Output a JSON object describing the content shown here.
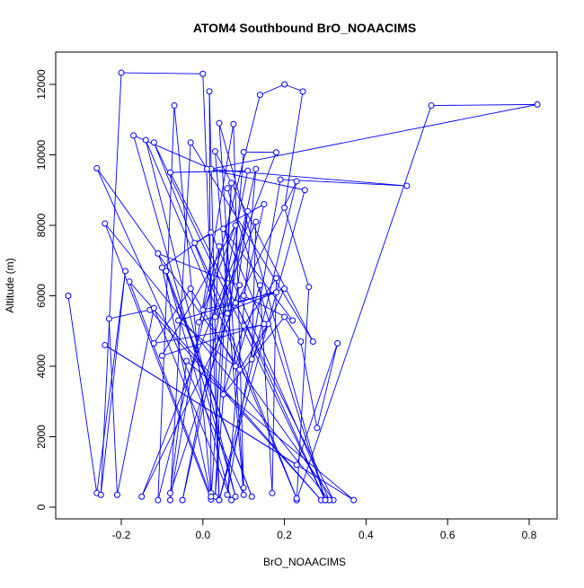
{
  "chart_data": {
    "type": "line",
    "title": "ATOM4 Southbound BrO_NOAACIMS",
    "xlabel": "BrO_NOAACIMS",
    "ylabel": "Altitude (m)",
    "xlim": [
      -0.35,
      0.87
    ],
    "ylim": [
      -300,
      12800
    ],
    "xticks": [
      -0.2,
      0.0,
      0.2,
      0.4,
      0.6,
      0.8
    ],
    "xtick_labels": [
      "-0.2",
      "0.0",
      "0.2",
      "0.4",
      "0.6",
      "0.8"
    ],
    "yticks": [
      0,
      2000,
      4000,
      6000,
      8000,
      10000,
      12000
    ],
    "ytick_labels": [
      "0",
      "2000",
      "4000",
      "6000",
      "8000",
      "10000",
      "12000"
    ],
    "grid": false,
    "series": [
      {
        "name": "BrO_NOAACIMS",
        "color": "#0000ff",
        "marker": "open-circle",
        "points": [
          [
            -0.33,
            6000
          ],
          [
            -0.26,
            400
          ],
          [
            -0.19,
            6700
          ],
          [
            -0.25,
            350
          ],
          [
            -0.2,
            12330
          ],
          [
            0.0,
            12300
          ],
          [
            0.04,
            200
          ],
          [
            0.016,
            11800
          ],
          [
            0.02,
            400
          ],
          [
            -0.07,
            11400
          ],
          [
            -0.11,
            200
          ],
          [
            0.14,
            11700
          ],
          [
            0.2,
            12000
          ],
          [
            0.245,
            11800
          ],
          [
            0.2,
            8500
          ],
          [
            0.26,
            6250
          ],
          [
            0.23,
            200
          ],
          [
            0.56,
            11400
          ],
          [
            0.82,
            11430
          ],
          [
            0.02,
            9600
          ],
          [
            -0.17,
            10550
          ],
          [
            0.08,
            300
          ],
          [
            -0.14,
            10420
          ],
          [
            0.23,
            250
          ],
          [
            -0.12,
            10350
          ],
          [
            0.3,
            200
          ],
          [
            0.04,
            10900
          ],
          [
            0.1,
            550
          ],
          [
            0.075,
            10870
          ],
          [
            -0.08,
            200
          ],
          [
            -0.03,
            10350
          ],
          [
            0.27,
            4700
          ],
          [
            0.03,
            10100
          ],
          [
            0.1,
            350
          ],
          [
            -0.26,
            9620
          ],
          [
            0.32,
            200
          ],
          [
            -0.08,
            9500
          ],
          [
            0.11,
            9550
          ],
          [
            -0.05,
            200
          ],
          [
            0.13,
            9600
          ],
          [
            0.06,
            350
          ],
          [
            0.19,
            9300
          ],
          [
            0.5,
            9120
          ],
          [
            0.01,
            9600
          ],
          [
            0.25,
            9000
          ],
          [
            0.04,
            200
          ],
          [
            0.23,
            9250
          ],
          [
            -0.15,
            300
          ],
          [
            0.18,
            10070
          ],
          [
            0.1,
            10080
          ],
          [
            0.03,
            300
          ],
          [
            0.07,
            9200
          ],
          [
            0.02,
            220
          ],
          [
            -0.24,
            8050
          ],
          [
            0.31,
            200
          ],
          [
            0.02,
            7800
          ],
          [
            -0.1,
            6800
          ],
          [
            0.02,
            300
          ],
          [
            -0.18,
            6400
          ],
          [
            0.29,
            200
          ],
          [
            -0.13,
            5600
          ],
          [
            -0.23,
            5350
          ],
          [
            -0.21,
            350
          ],
          [
            -0.12,
            5650
          ],
          [
            0.07,
            200
          ],
          [
            -0.09,
            6700
          ],
          [
            0.12,
            300
          ],
          [
            -0.11,
            7200
          ],
          [
            0.09,
            6300
          ],
          [
            -0.08,
            400
          ],
          [
            -0.04,
            4150
          ],
          [
            0.37,
            200
          ],
          [
            -0.24,
            4600
          ],
          [
            0.23,
            1200
          ],
          [
            0.33,
            4650
          ],
          [
            0.28,
            2250
          ],
          [
            0.24,
            4700
          ],
          [
            0.2,
            5400
          ],
          [
            0.05,
            3200
          ],
          [
            0.1,
            5150
          ],
          [
            0.18,
            6500
          ],
          [
            0.17,
            400
          ],
          [
            0.14,
            6300
          ],
          [
            0.08,
            4000
          ],
          [
            -0.03,
            6200
          ],
          [
            -0.12,
            4650
          ],
          [
            0.16,
            5200
          ],
          [
            0.09,
            3900
          ],
          [
            -0.06,
            5300
          ],
          [
            0.2,
            6200
          ],
          [
            0.12,
            4200
          ],
          [
            0.13,
            8100
          ],
          [
            0.03,
            5400
          ],
          [
            0.04,
            7400
          ],
          [
            0.0,
            5600
          ],
          [
            0.18,
            6100
          ],
          [
            -0.01,
            5250
          ],
          [
            0.08,
            8000
          ],
          [
            -0.1,
            4300
          ],
          [
            0.15,
            5200
          ],
          [
            0.05,
            7900
          ],
          [
            0.22,
            5300
          ],
          [
            0.1,
            6000
          ],
          [
            0.15,
            8600
          ],
          [
            -0.02,
            7500
          ],
          [
            0.06,
            5500
          ],
          [
            0.11,
            8400
          ],
          [
            0.08,
            5800
          ],
          [
            0.3,
            200
          ],
          [
            0.06,
            9050
          ]
        ]
      }
    ]
  }
}
